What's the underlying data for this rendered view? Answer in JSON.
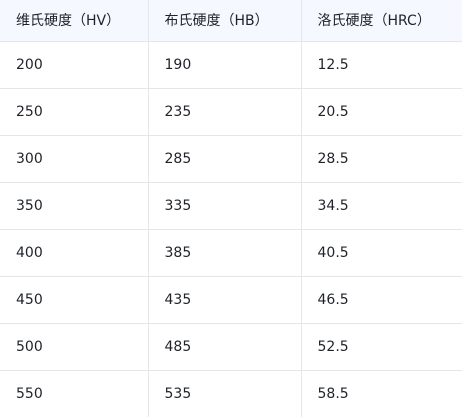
{
  "table": {
    "headers": [
      "维氏硬度（HV）",
      "布氏硬度（HB）",
      "洛氏硬度（HRC）"
    ],
    "rows": [
      [
        "200",
        "190",
        "12.5"
      ],
      [
        "250",
        "235",
        "20.5"
      ],
      [
        "300",
        "285",
        "28.5"
      ],
      [
        "350",
        "335",
        "34.5"
      ],
      [
        "400",
        "385",
        "40.5"
      ],
      [
        "450",
        "435",
        "46.5"
      ],
      [
        "500",
        "485",
        "52.5"
      ],
      [
        "550",
        "535",
        "58.5"
      ]
    ]
  },
  "colors": {
    "header_bg": "#f5f8ff",
    "border": "#e5e6eb",
    "text": "#1f2329"
  }
}
